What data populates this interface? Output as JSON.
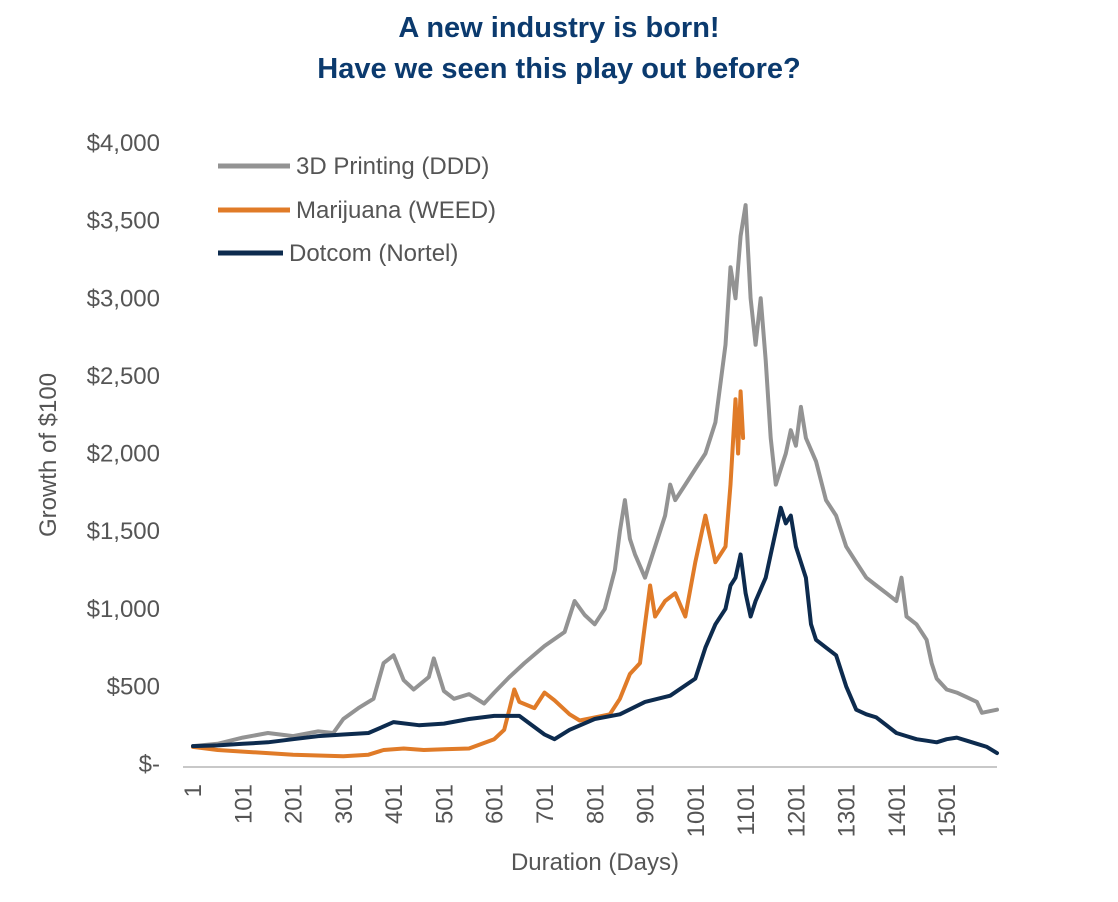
{
  "chart_data": {
    "type": "line",
    "title": [
      "A new industry is born!",
      "Have we seen this play out before?"
    ],
    "xlabel": "Duration (Days)",
    "ylabel": "Growth of $100",
    "xlim": [
      1,
      1600
    ],
    "ylim": [
      0,
      4000
    ],
    "y_ticks": [
      {
        "value": 0,
        "label": "$-"
      },
      {
        "value": 500,
        "label": "$500"
      },
      {
        "value": 1000,
        "label": "$1,000"
      },
      {
        "value": 1500,
        "label": "$1,500"
      },
      {
        "value": 2000,
        "label": "$2,000"
      },
      {
        "value": 2500,
        "label": "$2,500"
      },
      {
        "value": 3000,
        "label": "$3,000"
      },
      {
        "value": 3500,
        "label": "$3,500"
      },
      {
        "value": 4000,
        "label": "$4,000"
      }
    ],
    "x_ticks": [
      {
        "value": 1,
        "label": "1"
      },
      {
        "value": 101,
        "label": "101"
      },
      {
        "value": 201,
        "label": "201"
      },
      {
        "value": 301,
        "label": "301"
      },
      {
        "value": 401,
        "label": "401"
      },
      {
        "value": 501,
        "label": "501"
      },
      {
        "value": 601,
        "label": "601"
      },
      {
        "value": 701,
        "label": "701"
      },
      {
        "value": 801,
        "label": "801"
      },
      {
        "value": 901,
        "label": "901"
      },
      {
        "value": 1001,
        "label": "1001"
      },
      {
        "value": 1101,
        "label": "1101"
      },
      {
        "value": 1201,
        "label": "1201"
      },
      {
        "value": 1301,
        "label": "1301"
      },
      {
        "value": 1401,
        "label": "1401"
      },
      {
        "value": 1501,
        "label": "1501"
      }
    ],
    "grid": false,
    "legend_position": "top-left",
    "series": [
      {
        "name": "3D Printing (DDD)",
        "color": "#939393",
        "points": [
          [
            1,
            115
          ],
          [
            50,
            130
          ],
          [
            100,
            170
          ],
          [
            150,
            200
          ],
          [
            200,
            180
          ],
          [
            250,
            210
          ],
          [
            280,
            200
          ],
          [
            300,
            290
          ],
          [
            330,
            360
          ],
          [
            360,
            420
          ],
          [
            380,
            650
          ],
          [
            400,
            700
          ],
          [
            420,
            540
          ],
          [
            440,
            480
          ],
          [
            470,
            560
          ],
          [
            480,
            680
          ],
          [
            500,
            470
          ],
          [
            520,
            420
          ],
          [
            550,
            450
          ],
          [
            580,
            390
          ],
          [
            600,
            460
          ],
          [
            630,
            560
          ],
          [
            660,
            650
          ],
          [
            700,
            760
          ],
          [
            740,
            850
          ],
          [
            760,
            1050
          ],
          [
            780,
            960
          ],
          [
            800,
            900
          ],
          [
            820,
            1000
          ],
          [
            840,
            1250
          ],
          [
            850,
            1500
          ],
          [
            860,
            1700
          ],
          [
            870,
            1450
          ],
          [
            880,
            1350
          ],
          [
            900,
            1200
          ],
          [
            920,
            1400
          ],
          [
            940,
            1600
          ],
          [
            950,
            1800
          ],
          [
            960,
            1700
          ],
          [
            980,
            1800
          ],
          [
            1000,
            1900
          ],
          [
            1020,
            2000
          ],
          [
            1040,
            2200
          ],
          [
            1060,
            2700
          ],
          [
            1070,
            3200
          ],
          [
            1080,
            3000
          ],
          [
            1090,
            3400
          ],
          [
            1100,
            3600
          ],
          [
            1110,
            3000
          ],
          [
            1120,
            2700
          ],
          [
            1130,
            3000
          ],
          [
            1140,
            2600
          ],
          [
            1150,
            2100
          ],
          [
            1160,
            1800
          ],
          [
            1170,
            1900
          ],
          [
            1180,
            2000
          ],
          [
            1190,
            2150
          ],
          [
            1200,
            2050
          ],
          [
            1210,
            2300
          ],
          [
            1220,
            2100
          ],
          [
            1240,
            1950
          ],
          [
            1260,
            1700
          ],
          [
            1280,
            1600
          ],
          [
            1300,
            1400
          ],
          [
            1320,
            1300
          ],
          [
            1340,
            1200
          ],
          [
            1360,
            1150
          ],
          [
            1380,
            1100
          ],
          [
            1400,
            1050
          ],
          [
            1410,
            1200
          ],
          [
            1420,
            950
          ],
          [
            1440,
            900
          ],
          [
            1460,
            800
          ],
          [
            1470,
            650
          ],
          [
            1480,
            550
          ],
          [
            1500,
            480
          ],
          [
            1520,
            460
          ],
          [
            1540,
            430
          ],
          [
            1560,
            400
          ],
          [
            1570,
            330
          ],
          [
            1600,
            350
          ]
        ]
      },
      {
        "name": "Marijuana (WEED)",
        "color": "#e07b28",
        "points": [
          [
            1,
            110
          ],
          [
            50,
            90
          ],
          [
            100,
            80
          ],
          [
            150,
            70
          ],
          [
            200,
            60
          ],
          [
            250,
            55
          ],
          [
            300,
            50
          ],
          [
            350,
            60
          ],
          [
            380,
            90
          ],
          [
            420,
            100
          ],
          [
            460,
            90
          ],
          [
            500,
            95
          ],
          [
            550,
            100
          ],
          [
            600,
            160
          ],
          [
            620,
            220
          ],
          [
            630,
            350
          ],
          [
            640,
            480
          ],
          [
            650,
            400
          ],
          [
            680,
            360
          ],
          [
            700,
            460
          ],
          [
            720,
            410
          ],
          [
            750,
            320
          ],
          [
            770,
            280
          ],
          [
            800,
            300
          ],
          [
            830,
            320
          ],
          [
            850,
            420
          ],
          [
            870,
            580
          ],
          [
            890,
            650
          ],
          [
            900,
            900
          ],
          [
            910,
            1150
          ],
          [
            920,
            950
          ],
          [
            940,
            1050
          ],
          [
            960,
            1100
          ],
          [
            980,
            950
          ],
          [
            1000,
            1300
          ],
          [
            1020,
            1600
          ],
          [
            1040,
            1300
          ],
          [
            1060,
            1400
          ],
          [
            1070,
            1800
          ],
          [
            1080,
            2350
          ],
          [
            1085,
            2000
          ],
          [
            1090,
            2400
          ],
          [
            1095,
            2100
          ]
        ]
      },
      {
        "name": "Dotcom (Nortel)",
        "color": "#0d2b4e",
        "points": [
          [
            1,
            115
          ],
          [
            50,
            120
          ],
          [
            100,
            130
          ],
          [
            150,
            140
          ],
          [
            200,
            160
          ],
          [
            250,
            180
          ],
          [
            300,
            190
          ],
          [
            350,
            200
          ],
          [
            400,
            270
          ],
          [
            450,
            250
          ],
          [
            500,
            260
          ],
          [
            550,
            290
          ],
          [
            600,
            310
          ],
          [
            650,
            310
          ],
          [
            700,
            190
          ],
          [
            720,
            160
          ],
          [
            750,
            220
          ],
          [
            800,
            290
          ],
          [
            850,
            320
          ],
          [
            900,
            400
          ],
          [
            950,
            440
          ],
          [
            1000,
            550
          ],
          [
            1020,
            750
          ],
          [
            1040,
            900
          ],
          [
            1060,
            1000
          ],
          [
            1070,
            1150
          ],
          [
            1080,
            1200
          ],
          [
            1090,
            1350
          ],
          [
            1100,
            1100
          ],
          [
            1110,
            950
          ],
          [
            1120,
            1050
          ],
          [
            1140,
            1200
          ],
          [
            1150,
            1350
          ],
          [
            1160,
            1500
          ],
          [
            1170,
            1650
          ],
          [
            1180,
            1550
          ],
          [
            1190,
            1600
          ],
          [
            1200,
            1400
          ],
          [
            1210,
            1300
          ],
          [
            1220,
            1200
          ],
          [
            1230,
            900
          ],
          [
            1240,
            800
          ],
          [
            1260,
            750
          ],
          [
            1280,
            700
          ],
          [
            1300,
            500
          ],
          [
            1320,
            350
          ],
          [
            1340,
            320
          ],
          [
            1360,
            300
          ],
          [
            1380,
            250
          ],
          [
            1400,
            200
          ],
          [
            1420,
            180
          ],
          [
            1440,
            160
          ],
          [
            1460,
            150
          ],
          [
            1480,
            140
          ],
          [
            1500,
            160
          ],
          [
            1520,
            170
          ],
          [
            1540,
            150
          ],
          [
            1560,
            130
          ],
          [
            1580,
            110
          ],
          [
            1600,
            70
          ]
        ]
      }
    ]
  }
}
